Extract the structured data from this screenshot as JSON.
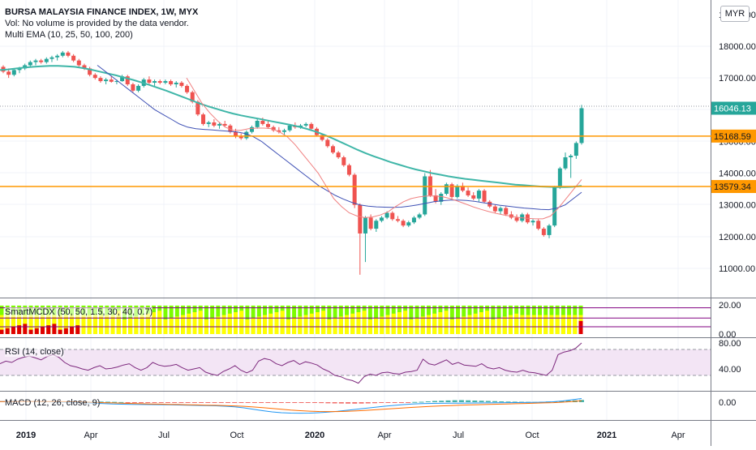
{
  "header": {
    "title": "BURSA MALAYSIA FINANCE INDEX, 1W, MYX",
    "volume_note": "Vol: No volume is provided by the data vendor.",
    "ema_label": "Multi EMA (10, 25, 50, 100, 200)"
  },
  "currency": "MYR",
  "panes": {
    "smart_label": "SmartMCDX (50, 50, 1.5, 30, 40, 0.7)",
    "rsi_label": "RSI (14, close)",
    "macd_label": "MACD (12, 26, close, 9)"
  },
  "colors": {
    "up": "#26a69a",
    "down": "#ef5350",
    "ema_teal": "#3fb6a8",
    "ema_blue": "#3f51b5",
    "ema_red": "#f08080",
    "hline": "#ff9800",
    "rsi": "#7e2a7e",
    "rsi_band": "#f3e5f5",
    "macd": "#2196f3",
    "signal": "#ff6d00",
    "smart_green": "#7cfc00",
    "smart_yellow": "#ffff00",
    "smart_red": "#e00000"
  },
  "chart_data": {
    "type": "candlestick",
    "price_axis": {
      "ticks": [
        "11000.00",
        "12000.00",
        "13000.00",
        "14000.00",
        "15000.00",
        "16000.00",
        "17000.00",
        "18000.00",
        "19000.00"
      ],
      "last_price": "16046.13",
      "hlines": [
        "15168.59",
        "13579.34"
      ]
    },
    "time_axis": [
      "2019",
      "Apr",
      "Jul",
      "Oct",
      "2020",
      "Apr",
      "Jul",
      "Oct",
      "2021",
      "Apr"
    ],
    "candles": [
      [
        17350,
        17400,
        17150,
        17200
      ],
      [
        17200,
        17300,
        17000,
        17100
      ],
      [
        17100,
        17300,
        17050,
        17250
      ],
      [
        17250,
        17350,
        17150,
        17300
      ],
      [
        17300,
        17450,
        17250,
        17400
      ],
      [
        17400,
        17550,
        17350,
        17500
      ],
      [
        17500,
        17600,
        17400,
        17550
      ],
      [
        17550,
        17600,
        17450,
        17500
      ],
      [
        17500,
        17650,
        17450,
        17600
      ],
      [
        17600,
        17700,
        17500,
        17650
      ],
      [
        17650,
        17750,
        17550,
        17700
      ],
      [
        17700,
        17850,
        17650,
        17800
      ],
      [
        17800,
        17850,
        17650,
        17700
      ],
      [
        17700,
        17750,
        17500,
        17550
      ],
      [
        17550,
        17600,
        17350,
        17400
      ],
      [
        17400,
        17450,
        17250,
        17300
      ],
      [
        17300,
        17350,
        17050,
        17100
      ],
      [
        17100,
        17150,
        16950,
        17000
      ],
      [
        17000,
        17050,
        16850,
        16900
      ],
      [
        16900,
        17000,
        16800,
        16950
      ],
      [
        16950,
        17050,
        16850,
        16880
      ],
      [
        16880,
        16950,
        16800,
        16900
      ],
      [
        16900,
        17100,
        16880,
        17050
      ],
      [
        17050,
        17100,
        16750,
        16800
      ],
      [
        16800,
        16850,
        16550,
        16600
      ],
      [
        16600,
        16800,
        16550,
        16750
      ],
      [
        16750,
        17000,
        16700,
        16950
      ],
      [
        16950,
        17050,
        16800,
        16850
      ],
      [
        16850,
        16950,
        16750,
        16900
      ],
      [
        16900,
        16950,
        16800,
        16850
      ],
      [
        16850,
        16950,
        16800,
        16900
      ],
      [
        16900,
        16950,
        16750,
        16800
      ],
      [
        16800,
        16900,
        16700,
        16850
      ],
      [
        16850,
        16900,
        16700,
        16750
      ],
      [
        16750,
        16800,
        16500,
        16550
      ],
      [
        16550,
        16600,
        16200,
        16250
      ],
      [
        16250,
        16300,
        15800,
        15850
      ],
      [
        15850,
        15900,
        15500,
        15550
      ],
      [
        15550,
        15650,
        15450,
        15600
      ],
      [
        15600,
        15700,
        15450,
        15500
      ],
      [
        15500,
        15600,
        15400,
        15550
      ],
      [
        15550,
        15650,
        15450,
        15500
      ],
      [
        15500,
        15550,
        15250,
        15300
      ],
      [
        15300,
        15400,
        15100,
        15150
      ],
      [
        15150,
        15250,
        15050,
        15100
      ],
      [
        15100,
        15350,
        15050,
        15300
      ],
      [
        15300,
        15500,
        15250,
        15450
      ],
      [
        15450,
        15700,
        15400,
        15650
      ],
      [
        15650,
        15750,
        15500,
        15550
      ],
      [
        15550,
        15650,
        15400,
        15450
      ],
      [
        15450,
        15500,
        15300,
        15350
      ],
      [
        15350,
        15450,
        15250,
        15300
      ],
      [
        15300,
        15400,
        15200,
        15350
      ],
      [
        15350,
        15550,
        15300,
        15500
      ],
      [
        15500,
        15600,
        15400,
        15450
      ],
      [
        15450,
        15550,
        15400,
        15500
      ],
      [
        15500,
        15600,
        15450,
        15550
      ],
      [
        15550,
        15600,
        15350,
        15400
      ],
      [
        15400,
        15450,
        15150,
        15200
      ],
      [
        15200,
        15250,
        15000,
        15050
      ],
      [
        15050,
        15100,
        14800,
        14850
      ],
      [
        14850,
        14900,
        14600,
        14650
      ],
      [
        14650,
        14700,
        14450,
        14500
      ],
      [
        14500,
        14550,
        14200,
        14250
      ],
      [
        14250,
        14300,
        13900,
        13950
      ],
      [
        13950,
        14000,
        12900,
        13000
      ],
      [
        13000,
        13050,
        10800,
        12100
      ],
      [
        12100,
        12650,
        11200,
        12600
      ],
      [
        12600,
        12700,
        12200,
        12250
      ],
      [
        12250,
        12550,
        12150,
        12500
      ],
      [
        12500,
        12650,
        12450,
        12600
      ],
      [
        12600,
        12800,
        12550,
        12750
      ],
      [
        12750,
        12800,
        12500,
        12550
      ],
      [
        12550,
        12650,
        12450,
        12500
      ],
      [
        12500,
        12550,
        12300,
        12350
      ],
      [
        12350,
        12500,
        12300,
        12450
      ],
      [
        12450,
        12650,
        12400,
        12600
      ],
      [
        12600,
        12750,
        12550,
        12700
      ],
      [
        12700,
        14000,
        12650,
        13900
      ],
      [
        13900,
        14100,
        13250,
        13300
      ],
      [
        13300,
        13500,
        13050,
        13100
      ],
      [
        13100,
        13400,
        13000,
        13350
      ],
      [
        13350,
        13700,
        13300,
        13650
      ],
      [
        13650,
        13700,
        13200,
        13250
      ],
      [
        13250,
        13650,
        13200,
        13600
      ],
      [
        13600,
        13700,
        13400,
        13450
      ],
      [
        13450,
        13550,
        13250,
        13300
      ],
      [
        13300,
        13400,
        13150,
        13200
      ],
      [
        13200,
        13500,
        13100,
        13450
      ],
      [
        13450,
        13500,
        13050,
        13100
      ],
      [
        13100,
        13150,
        12900,
        12950
      ],
      [
        12950,
        13000,
        12750,
        12800
      ],
      [
        12800,
        12950,
        12700,
        12900
      ],
      [
        12900,
        12950,
        12650,
        12700
      ],
      [
        12700,
        12800,
        12550,
        12600
      ],
      [
        12600,
        12700,
        12450,
        12500
      ],
      [
        12500,
        12750,
        12450,
        12700
      ],
      [
        12700,
        12750,
        12400,
        12450
      ],
      [
        12450,
        12550,
        12350,
        12500
      ],
      [
        12500,
        12550,
        12200,
        12250
      ],
      [
        12250,
        12300,
        12000,
        12050
      ],
      [
        12050,
        12400,
        11950,
        12350
      ],
      [
        12350,
        13600,
        12300,
        13550
      ],
      [
        13550,
        14200,
        13500,
        14150
      ],
      [
        14150,
        14650,
        14100,
        14500
      ],
      [
        14500,
        14600,
        13850,
        14550
      ],
      [
        14550,
        15000,
        14450,
        14950
      ],
      [
        14950,
        16150,
        14900,
        16046
      ]
    ],
    "ema_teal": [
      17250,
      17270,
      17300,
      17330,
      17350,
      17370,
      17380,
      17380,
      17370,
      17350,
      17310,
      17260,
      17200,
      17140,
      17080,
      17010,
      16940,
      16860,
      16780,
      16690,
      16600,
      16500,
      16400,
      16300,
      16200,
      16110,
      16030,
      15950,
      15880,
      15820,
      15770,
      15720,
      15670,
      15620,
      15570,
      15520,
      15460,
      15390,
      15310,
      15210,
      15100,
      14980,
      14860,
      14740,
      14630,
      14530,
      14440,
      14350,
      14270,
      14190,
      14120,
      14060,
      14000,
      13950,
      13900,
      13860,
      13820,
      13790,
      13760,
      13730,
      13700,
      13670,
      13640,
      13620,
      13600,
      13580,
      13570,
      13560,
      13560,
      13570,
      13600
    ],
    "ema_blue": [
      17400,
      17200,
      17000,
      16800,
      16600,
      16400,
      16200,
      16000,
      15850,
      15700,
      15550,
      15450,
      15400,
      15380,
      15360,
      15340,
      15320,
      15300,
      15250,
      15150,
      15000,
      14800,
      14600,
      14400,
      14200,
      14000,
      13800,
      13600,
      13450,
      13300,
      13180,
      13080,
      13000,
      12960,
      12940,
      12930,
      12920,
      12930,
      12960,
      13000,
      13050,
      13100,
      13130,
      13150,
      13150,
      13140,
      13110,
      13070,
      13030,
      12990,
      12960,
      12930,
      12900,
      12880,
      12860,
      12850,
      12900,
      13000,
      13200,
      13400
    ],
    "ema_red": [
      17000,
      16600,
      16200,
      15900,
      15650,
      15450,
      15350,
      15350,
      15400,
      15420,
      15420,
      15400,
      15300,
      15150,
      14900,
      14600,
      14300,
      14000,
      13600,
      13200,
      12950,
      12750,
      12650,
      12600,
      12620,
      12680,
      12780,
      12950,
      13100,
      13200,
      13250,
      13280,
      13280,
      13260,
      13200,
      13120,
      13030,
      12940,
      12860,
      12790,
      12730,
      12680,
      12640,
      12600,
      12580,
      12560,
      12560,
      12650,
      12900,
      13200,
      13500,
      13800
    ],
    "smart_pane": {
      "ticks": [
        "20.00",
        "0.00"
      ]
    },
    "rsi": {
      "ticks": [
        "80.00",
        "40.00"
      ],
      "band": [
        70,
        30
      ],
      "values": [
        48,
        52,
        50,
        55,
        58,
        60,
        57,
        54,
        59,
        62,
        58,
        50,
        45,
        43,
        40,
        38,
        42,
        45,
        40,
        41,
        43,
        46,
        48,
        42,
        38,
        42,
        50,
        46,
        44,
        45,
        47,
        42,
        38,
        40,
        42,
        35,
        32,
        30,
        36,
        40,
        45,
        38,
        34,
        38,
        52,
        56,
        54,
        48,
        45,
        50,
        53,
        47,
        51,
        49,
        46,
        40,
        36,
        30,
        28,
        24,
        22,
        18,
        28,
        32,
        30,
        34,
        35,
        33,
        32,
        35,
        36,
        38,
        55,
        48,
        46,
        50,
        54,
        47,
        50,
        46,
        45,
        44,
        48,
        42,
        40,
        42,
        38,
        36,
        35,
        38,
        35,
        34,
        32,
        30,
        38,
        62,
        66,
        68,
        72,
        80
      ]
    },
    "macd": {
      "ticks": [
        "0.00"
      ],
      "hist": [
        20,
        25,
        30,
        28,
        22,
        15,
        5,
        -5,
        -15,
        -25,
        -30,
        -35,
        -40,
        -35,
        -30,
        -25,
        -20,
        -18,
        -25,
        -30,
        -35,
        -30,
        -25,
        -20,
        -18,
        -20,
        -25,
        -20,
        -15,
        -10,
        -5,
        -3,
        -8,
        -15,
        -25,
        -35,
        -45,
        -55,
        -60,
        -65,
        -70,
        -72,
        -68,
        -60,
        -50,
        -40,
        -30,
        -20,
        -10,
        -5,
        10,
        20,
        40,
        60,
        70,
        85,
        95,
        100,
        90,
        80,
        70,
        60,
        50,
        40,
        30,
        25,
        20,
        15,
        10,
        20,
        30,
        40,
        55,
        70,
        90,
        110
      ],
      "macd": [
        30,
        35,
        40,
        38,
        30,
        20,
        10,
        0,
        -10,
        -30,
        -50,
        -70,
        -90,
        -100,
        -110,
        -115,
        -120,
        -125,
        -130,
        -140,
        -150,
        -160,
        -170,
        -180,
        -200,
        -230,
        -280,
        -350,
        -420,
        -480,
        -520,
        -540,
        -545,
        -540,
        -520,
        -490,
        -450,
        -400,
        -350,
        -300,
        -250,
        -200,
        -160,
        -120,
        -90,
        -70,
        -60,
        -55,
        -50,
        -50,
        -45,
        -40,
        -35,
        -30,
        -25,
        -20,
        -15,
        -10,
        0,
        20,
        60,
        120,
        180
      ],
      "signal": [
        30,
        32,
        34,
        35,
        34,
        31,
        27,
        22,
        15,
        5,
        -8,
        -22,
        -38,
        -52,
        -65,
        -77,
        -88,
        -98,
        -108,
        -118,
        -128,
        -138,
        -148,
        -158,
        -170,
        -185,
        -205,
        -235,
        -270,
        -310,
        -350,
        -390,
        -420,
        -445,
        -460,
        -465,
        -462,
        -450,
        -430,
        -405,
        -375,
        -345,
        -315,
        -285,
        -255,
        -228,
        -205,
        -185,
        -168,
        -152,
        -138,
        -125,
        -112,
        -100,
        -88,
        -76,
        -64,
        -52,
        -38,
        -22,
        0,
        30,
        70
      ]
    }
  }
}
